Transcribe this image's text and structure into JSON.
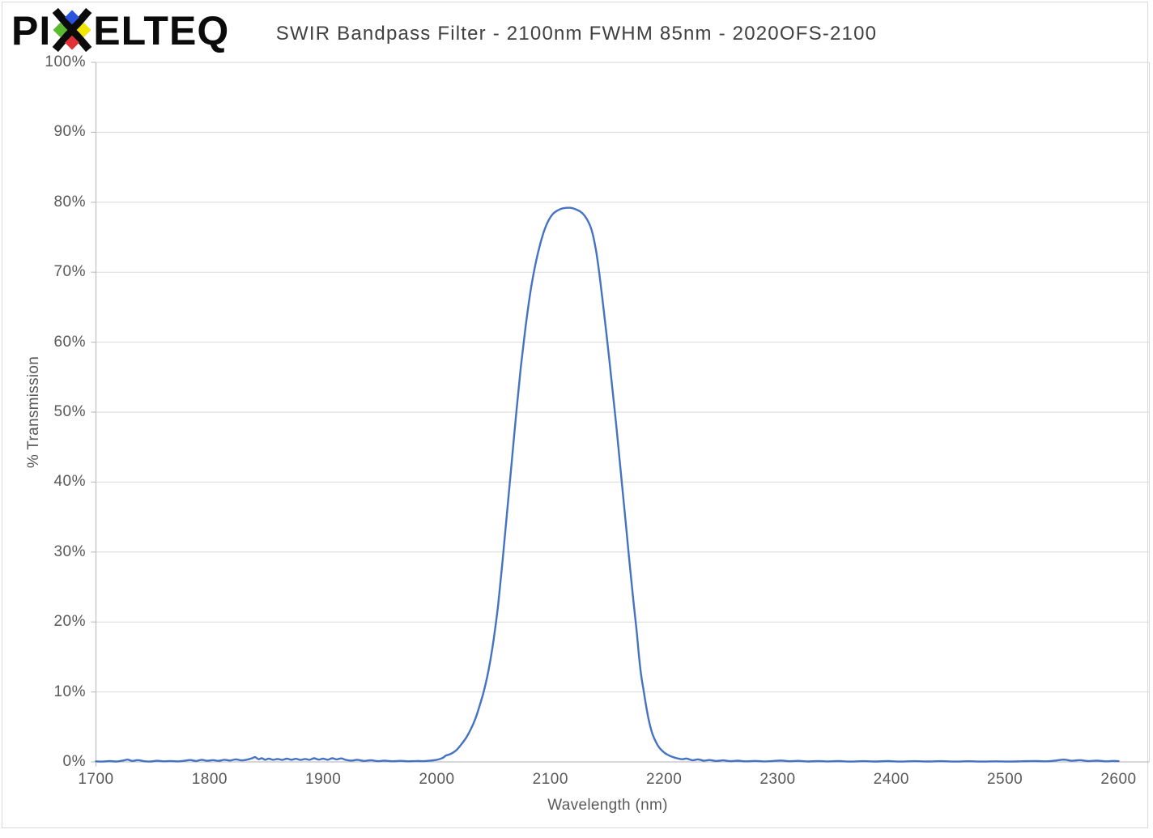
{
  "logo": {
    "text_before_x": "PI",
    "text_after_x": "ELTEQ",
    "x_icon_colors": {
      "top": "#2B52DC",
      "left": "#5CB82E",
      "right": "#F2E500",
      "bottom": "#E03238"
    }
  },
  "header": {
    "title": "SWIR Bandpass Filter - 2100nm FWHM 85nm - 2020OFS-2100"
  },
  "chart_data": {
    "type": "line",
    "title": "SWIR Bandpass Filter - 2100nm FWHM 85nm - 2020OFS-2100",
    "xlabel": "Wavelength (nm)",
    "ylabel": "% Transmission",
    "xlim": [
      1700,
      2600
    ],
    "ylim": [
      0,
      100
    ],
    "grid": true,
    "legend_position": "none",
    "x_ticks": [
      1700,
      1800,
      1900,
      2000,
      2100,
      2200,
      2300,
      2400,
      2500,
      2600
    ],
    "x_tick_labels": [
      "1700",
      "1800",
      "1900",
      "2000",
      "2100",
      "2200",
      "2300",
      "2400",
      "2500",
      "2600"
    ],
    "y_ticks": [
      0,
      10,
      20,
      30,
      40,
      50,
      60,
      70,
      80,
      90,
      100
    ],
    "y_tick_labels": [
      "0%",
      "10%",
      "20%",
      "30%",
      "40%",
      "50%",
      "60%",
      "70%",
      "80%",
      "90%",
      "100%"
    ],
    "colors": {
      "line": "#4472C4",
      "gridline": "#D9D9D9",
      "axis": "#BFBFBF",
      "tick_label": "#595959",
      "title": "#404040"
    },
    "series": [
      {
        "name": "% Transmission",
        "color": "#4472C4",
        "points": [
          [
            1700,
            0.08
          ],
          [
            1706,
            0.05
          ],
          [
            1712,
            0.12
          ],
          [
            1718,
            0.06
          ],
          [
            1724,
            0.2
          ],
          [
            1728,
            0.32
          ],
          [
            1732,
            0.14
          ],
          [
            1737,
            0.26
          ],
          [
            1742,
            0.1
          ],
          [
            1748,
            0.06
          ],
          [
            1754,
            0.16
          ],
          [
            1760,
            0.08
          ],
          [
            1766,
            0.13
          ],
          [
            1772,
            0.07
          ],
          [
            1778,
            0.16
          ],
          [
            1783,
            0.27
          ],
          [
            1788,
            0.13
          ],
          [
            1793,
            0.3
          ],
          [
            1798,
            0.16
          ],
          [
            1803,
            0.26
          ],
          [
            1808,
            0.15
          ],
          [
            1813,
            0.3
          ],
          [
            1818,
            0.2
          ],
          [
            1823,
            0.36
          ],
          [
            1828,
            0.22
          ],
          [
            1833,
            0.32
          ],
          [
            1837,
            0.5
          ],
          [
            1840,
            0.68
          ],
          [
            1843,
            0.38
          ],
          [
            1846,
            0.52
          ],
          [
            1849,
            0.3
          ],
          [
            1852,
            0.46
          ],
          [
            1856,
            0.3
          ],
          [
            1860,
            0.42
          ],
          [
            1864,
            0.28
          ],
          [
            1868,
            0.46
          ],
          [
            1872,
            0.3
          ],
          [
            1876,
            0.44
          ],
          [
            1880,
            0.28
          ],
          [
            1884,
            0.42
          ],
          [
            1888,
            0.3
          ],
          [
            1892,
            0.52
          ],
          [
            1896,
            0.32
          ],
          [
            1900,
            0.46
          ],
          [
            1904,
            0.3
          ],
          [
            1908,
            0.52
          ],
          [
            1912,
            0.36
          ],
          [
            1916,
            0.5
          ],
          [
            1920,
            0.28
          ],
          [
            1925,
            0.18
          ],
          [
            1930,
            0.3
          ],
          [
            1936,
            0.14
          ],
          [
            1942,
            0.24
          ],
          [
            1948,
            0.1
          ],
          [
            1954,
            0.18
          ],
          [
            1961,
            0.09
          ],
          [
            1968,
            0.15
          ],
          [
            1975,
            0.08
          ],
          [
            1982,
            0.13
          ],
          [
            1988,
            0.1
          ],
          [
            1994,
            0.18
          ],
          [
            2000,
            0.3
          ],
          [
            2005,
            0.55
          ],
          [
            2008,
            0.9
          ],
          [
            2011,
            1.05
          ],
          [
            2014,
            1.3
          ],
          [
            2018,
            1.8
          ],
          [
            2022,
            2.6
          ],
          [
            2026,
            3.5
          ],
          [
            2030,
            4.7
          ],
          [
            2034,
            6.2
          ],
          [
            2038,
            8.2
          ],
          [
            2042,
            10.5
          ],
          [
            2046,
            13.5
          ],
          [
            2050,
            17.5
          ],
          [
            2054,
            22.5
          ],
          [
            2058,
            29
          ],
          [
            2062,
            36
          ],
          [
            2066,
            43
          ],
          [
            2070,
            50
          ],
          [
            2074,
            56.5
          ],
          [
            2078,
            62
          ],
          [
            2082,
            66.8
          ],
          [
            2086,
            70.5
          ],
          [
            2090,
            73.4
          ],
          [
            2094,
            75.7
          ],
          [
            2098,
            77.3
          ],
          [
            2102,
            78.3
          ],
          [
            2106,
            78.8
          ],
          [
            2110,
            79.1
          ],
          [
            2114,
            79.2
          ],
          [
            2118,
            79.2
          ],
          [
            2122,
            79.0
          ],
          [
            2126,
            78.7
          ],
          [
            2130,
            78.1
          ],
          [
            2134,
            77.0
          ],
          [
            2137,
            75.6
          ],
          [
            2140,
            73.2
          ],
          [
            2143,
            69.8
          ],
          [
            2146,
            65.8
          ],
          [
            2149,
            61.6
          ],
          [
            2152,
            57.2
          ],
          [
            2155,
            52.6
          ],
          [
            2158,
            48
          ],
          [
            2161,
            43
          ],
          [
            2164,
            38
          ],
          [
            2167,
            33
          ],
          [
            2170,
            27.8
          ],
          [
            2173,
            23
          ],
          [
            2176,
            18.5
          ],
          [
            2178,
            15
          ],
          [
            2180,
            12.2
          ],
          [
            2182,
            10.2
          ],
          [
            2184,
            8.2
          ],
          [
            2186,
            6.4
          ],
          [
            2188,
            5
          ],
          [
            2190,
            3.9
          ],
          [
            2193,
            2.8
          ],
          [
            2196,
            2.0
          ],
          [
            2200,
            1.35
          ],
          [
            2204,
            0.95
          ],
          [
            2208,
            0.68
          ],
          [
            2212,
            0.5
          ],
          [
            2216,
            0.38
          ],
          [
            2220,
            0.48
          ],
          [
            2225,
            0.24
          ],
          [
            2230,
            0.36
          ],
          [
            2235,
            0.17
          ],
          [
            2240,
            0.27
          ],
          [
            2246,
            0.13
          ],
          [
            2252,
            0.22
          ],
          [
            2258,
            0.1
          ],
          [
            2265,
            0.17
          ],
          [
            2272,
            0.08
          ],
          [
            2280,
            0.14
          ],
          [
            2288,
            0.07
          ],
          [
            2296,
            0.13
          ],
          [
            2303,
            0.2
          ],
          [
            2310,
            0.09
          ],
          [
            2318,
            0.15
          ],
          [
            2326,
            0.06
          ],
          [
            2335,
            0.12
          ],
          [
            2344,
            0.07
          ],
          [
            2354,
            0.11
          ],
          [
            2364,
            0.05
          ],
          [
            2375,
            0.1
          ],
          [
            2386,
            0.06
          ],
          [
            2397,
            0.11
          ],
          [
            2408,
            0.05
          ],
          [
            2420,
            0.1
          ],
          [
            2432,
            0.06
          ],
          [
            2444,
            0.1
          ],
          [
            2456,
            0.05
          ],
          [
            2468,
            0.09
          ],
          [
            2480,
            0.05
          ],
          [
            2492,
            0.08
          ],
          [
            2504,
            0.05
          ],
          [
            2516,
            0.09
          ],
          [
            2528,
            0.12
          ],
          [
            2537,
            0.08
          ],
          [
            2545,
            0.2
          ],
          [
            2552,
            0.32
          ],
          [
            2559,
            0.16
          ],
          [
            2566,
            0.26
          ],
          [
            2573,
            0.12
          ],
          [
            2581,
            0.18
          ],
          [
            2589,
            0.08
          ],
          [
            2595,
            0.14
          ],
          [
            2600,
            0.1
          ]
        ]
      }
    ]
  }
}
